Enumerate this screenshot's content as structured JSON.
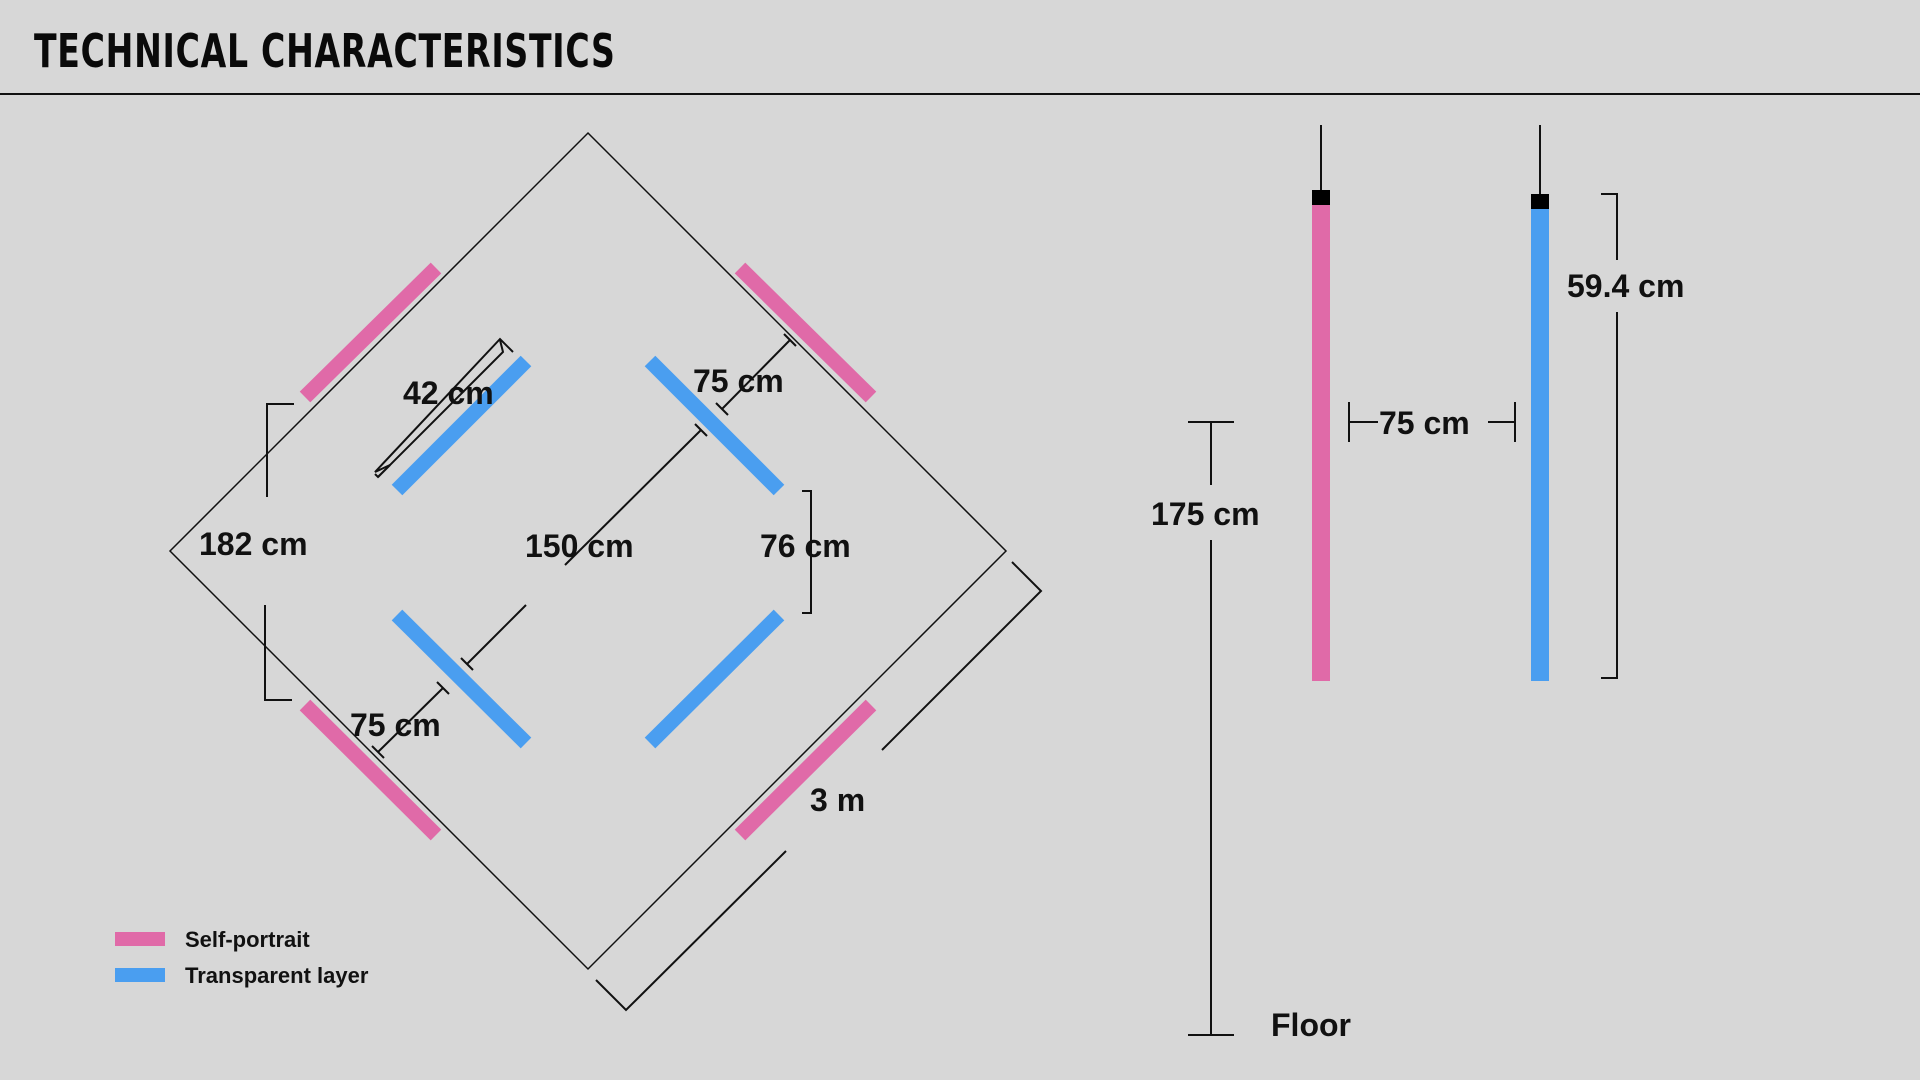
{
  "header": {
    "title": "TECHNICAL CHARACTERISTICS"
  },
  "colors": {
    "background": "#d7d7d7",
    "self_portrait": "#e06aa8",
    "transparent_layer": "#4a9ef0",
    "line": "#111111"
  },
  "plan": {
    "dimensions": {
      "width_42": "42 cm",
      "gap_75_top": "75 cm",
      "side_182": "182 cm",
      "diagonal_150": "150 cm",
      "gap_76": "76 cm",
      "gap_75_bottom": "75 cm",
      "room_3m": "3 m"
    }
  },
  "elevation": {
    "dimensions": {
      "spacing_75": "75 cm",
      "height_594": "59.4 cm",
      "hang_175": "175 cm"
    },
    "floor_label": "Floor"
  },
  "legend": {
    "items": [
      {
        "label": "Self-portrait",
        "color": "#e06aa8"
      },
      {
        "label": "Transparent layer",
        "color": "#4a9ef0"
      }
    ]
  }
}
